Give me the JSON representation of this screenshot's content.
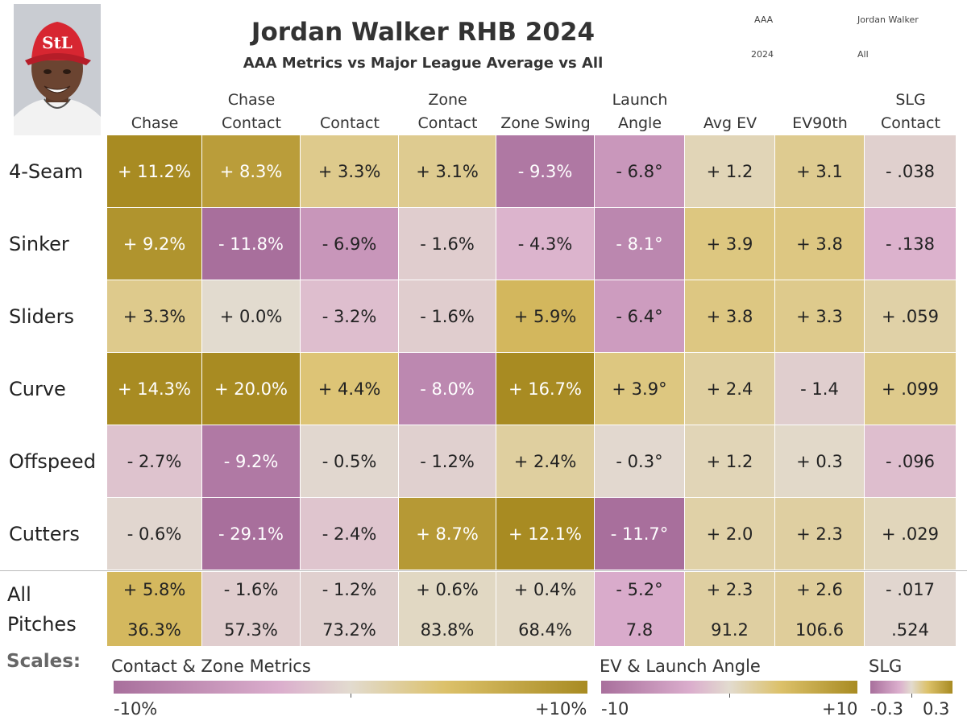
{
  "title": "Jordan Walker RHB 2024",
  "subtitle": "AAA Metrics vs Major League Average vs All",
  "filters": {
    "level": "AAA",
    "player": "Jordan Walker",
    "year": "2024",
    "pitcher": "All"
  },
  "colors": {
    "neg": "#a86f9c",
    "pink": "#dbaecd",
    "neutral": "#e2dbcf",
    "gold": "#dcc16a",
    "pos": "#a88b22"
  },
  "chart_data": {
    "type": "heatmap",
    "title": "Jordan Walker RHB 2024",
    "subtitle": "AAA Metrics vs Major League Average vs All",
    "columns": [
      {
        "line1": "",
        "line2": "Chase",
        "scale": 10
      },
      {
        "line1": "Chase",
        "line2": "Contact",
        "scale": 10
      },
      {
        "line1": "",
        "line2": "Contact",
        "scale": 10
      },
      {
        "line1": "Zone",
        "line2": "Contact",
        "scale": 10
      },
      {
        "line1": "",
        "line2": "Zone Swing",
        "scale": 10
      },
      {
        "line1": "Launch",
        "line2": "Angle",
        "scale": 10
      },
      {
        "line1": "",
        "line2": "Avg EV",
        "scale": 10
      },
      {
        "line1": "",
        "line2": "EV90th",
        "scale": 10
      },
      {
        "line1": "SLG",
        "line2": "Contact",
        "scale": 0.3
      }
    ],
    "rows": [
      {
        "label": "4-Seam",
        "labels": [
          "+ 11.2%",
          "+ 8.3%",
          "+ 3.3%",
          "+ 3.1%",
          "- 9.3%",
          "- 6.8°",
          "+ 1.2",
          "+ 3.1",
          "- .038"
        ],
        "values": [
          11.2,
          8.3,
          3.3,
          3.1,
          -9.3,
          -6.8,
          1.2,
          3.1,
          -0.038
        ]
      },
      {
        "label": "Sinker",
        "labels": [
          "+ 9.2%",
          "- 11.8%",
          "- 6.9%",
          "- 1.6%",
          "- 4.3%",
          "- 8.1°",
          "+ 3.9",
          "+ 3.8",
          "- .138"
        ],
        "values": [
          9.2,
          -11.8,
          -6.9,
          -1.6,
          -4.3,
          -8.1,
          3.9,
          3.8,
          -0.138
        ]
      },
      {
        "label": "Sliders",
        "labels": [
          "+ 3.3%",
          "+ 0.0%",
          "- 3.2%",
          "- 1.6%",
          "+ 5.9%",
          "- 6.4°",
          "+ 3.8",
          "+ 3.3",
          "+ .059"
        ],
        "values": [
          3.3,
          0.0,
          -3.2,
          -1.6,
          5.9,
          -6.4,
          3.8,
          3.3,
          0.059
        ]
      },
      {
        "label": "Curve",
        "labels": [
          "+ 14.3%",
          "+ 20.0%",
          "+ 4.4%",
          "- 8.0%",
          "+ 16.7%",
          "+ 3.9°",
          "+ 2.4",
          "- 1.4",
          "+ .099"
        ],
        "values": [
          14.3,
          20.0,
          4.4,
          -8.0,
          16.7,
          3.9,
          2.4,
          -1.4,
          0.099
        ]
      },
      {
        "label": "Offspeed",
        "labels": [
          "- 2.7%",
          "- 9.2%",
          "- 0.5%",
          "- 1.2%",
          "+ 2.4%",
          "- 0.3°",
          "+ 1.2",
          "+ 0.3",
          "- .096"
        ],
        "values": [
          -2.7,
          -9.2,
          -0.5,
          -1.2,
          2.4,
          -0.3,
          1.2,
          0.3,
          -0.096
        ]
      },
      {
        "label": "Cutters",
        "labels": [
          "- 0.6%",
          "- 29.1%",
          "- 2.4%",
          "+ 8.7%",
          "+ 12.1%",
          "- 11.7°",
          "+ 2.0",
          "+ 2.3",
          "+ .029"
        ],
        "values": [
          -0.6,
          -29.1,
          -2.4,
          8.7,
          12.1,
          -11.7,
          2.0,
          2.3,
          0.029
        ]
      }
    ],
    "all_pitches": {
      "label_line1": "All",
      "label_line2": "Pitches",
      "diff_labels": [
        "+ 5.8%",
        "- 1.6%",
        "- 1.2%",
        "+ 0.6%",
        "+ 0.4%",
        "- 5.2°",
        "+ 2.3",
        "+ 2.6",
        "- .017"
      ],
      "diffs": [
        5.8,
        -1.6,
        -1.2,
        0.6,
        0.4,
        -5.2,
        2.3,
        2.6,
        -0.017
      ],
      "totals": [
        "36.3%",
        "57.3%",
        "73.2%",
        "83.8%",
        "68.4%",
        "7.8",
        "91.2",
        "106.6",
        ".524"
      ]
    },
    "legends": [
      {
        "title": "Contact & Zone Metrics",
        "min_label": "-10%",
        "max_label": "+10%"
      },
      {
        "title": "EV & Launch Angle",
        "min_label": "-10",
        "max_label": "+10"
      },
      {
        "title": "SLG",
        "min_label": "-0.3",
        "max_label": "0.3"
      }
    ]
  },
  "scales_label": "Scales:"
}
